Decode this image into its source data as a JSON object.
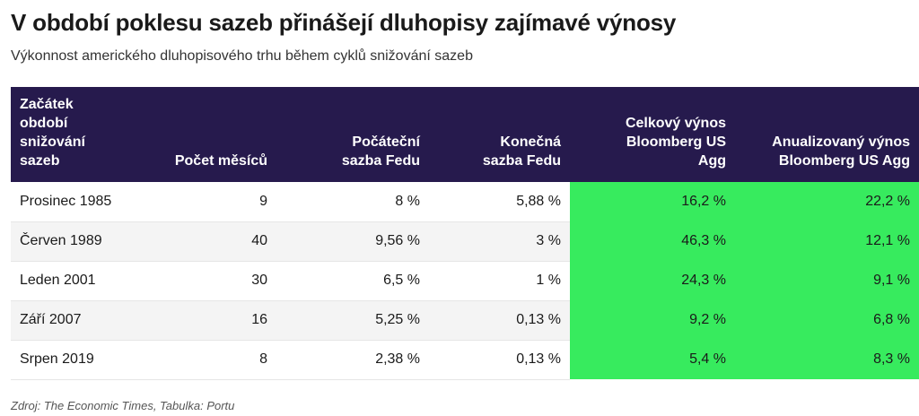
{
  "title": "V období poklesu sazeb přinášejí dluhopisy zajímavé výnosy",
  "subtitle": "Výkonnost amerického dluhopisového trhu během cyklů snižování sazeb",
  "table": {
    "headers": [
      "Začátek\nobdobí\nsnižování\nsazeb",
      "Počet měsíců",
      "Počáteční\nsazba Fedu",
      "Konečná\nsazba Fedu",
      "Celkový výnos\nBloomberg US\nAgg",
      "Anualizovaný výnos\nBloomberg US Agg"
    ],
    "rows": [
      [
        "Prosinec 1985",
        "9",
        "8 %",
        "5,88 %",
        "16,2 %",
        "22,2 %"
      ],
      [
        "Červen 1989",
        "40",
        "9,56 %",
        "3 %",
        "46,3 %",
        "12,1 %"
      ],
      [
        "Leden 2001",
        "30",
        "6,5 %",
        "1 %",
        "24,3 %",
        "9,1 %"
      ],
      [
        "Září 2007",
        "16",
        "5,25 %",
        "0,13 %",
        "9,2 %",
        "6,8 %"
      ],
      [
        "Srpen 2019",
        "8",
        "2,38 %",
        "0,13 %",
        "5,4 %",
        "8,3 %"
      ]
    ]
  },
  "colors": {
    "header_bg": "#261a4d",
    "highlight": "#37eb5e"
  },
  "source": "Zdroj: The Economic Times, Tabulka: Portu"
}
